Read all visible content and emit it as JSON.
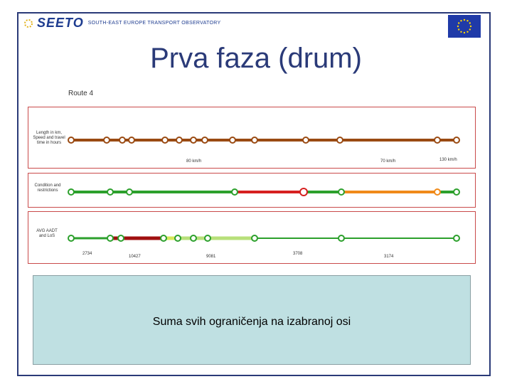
{
  "header": {
    "logo_text": "SEETO",
    "logo_tagline": "SOUTH-EAST EUROPE TRANSPORT OBSERVATORY",
    "flag_icon": "eu-flag-icon"
  },
  "slide": {
    "title": "Prva faza (drum)",
    "caption": "Suma svih ograničenja na izabranoj osi"
  },
  "diagram": {
    "route_label": "Route 4",
    "row_labels": {
      "length": "Length in km, Speed and travel time in hours",
      "condition": "Condition and restrictions",
      "aadt": "AVG AADT and LoS"
    },
    "speed_labels": [
      "80 km/h",
      "70 km/h",
      "130 km/h"
    ],
    "aadt_values": [
      "2734",
      "10427",
      "9081",
      "3708",
      "3174"
    ],
    "colors": {
      "brown": "#9a4a12",
      "green": "#2ca02c",
      "red": "#d62020",
      "orange": "#f08a1a",
      "darkred": "#a01010",
      "lightgreen": "#b8e07a",
      "yellowgreen": "#d7e85a"
    }
  }
}
